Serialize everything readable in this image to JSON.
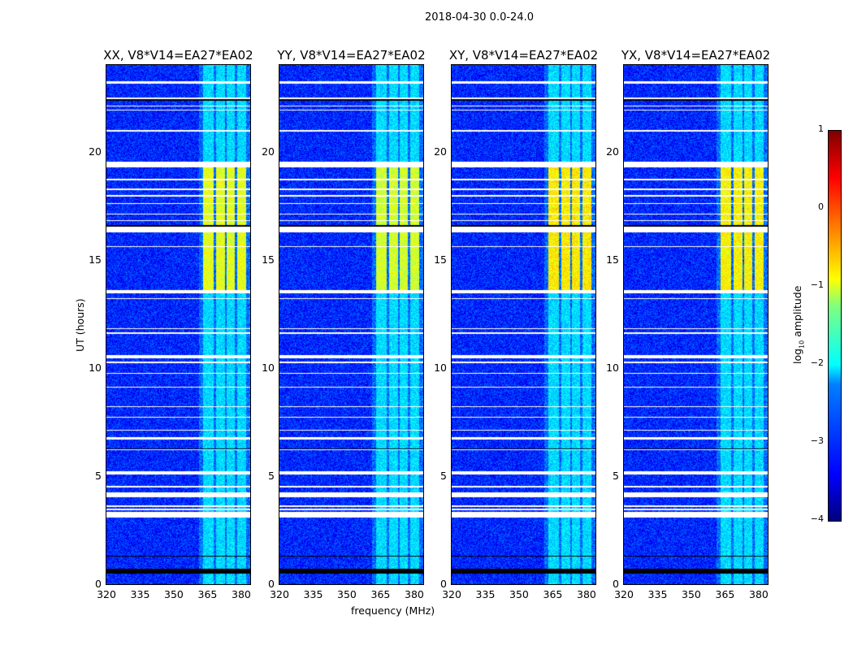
{
  "chart_data": {
    "type": "heatmap",
    "title": "2018-04-30 0.0-24.0",
    "xlabel": "frequency (MHz)",
    "ylabel": "UT (hours)",
    "xlim": [
      320,
      384
    ],
    "ylim": [
      0,
      24
    ],
    "xticks": [
      "320",
      "335",
      "350",
      "365",
      "380"
    ],
    "yticks": [
      "0",
      "5",
      "10",
      "15",
      "20"
    ],
    "panels": [
      {
        "title": "XX, V8*V14=EA27*EA02",
        "peak_boost": 1.0
      },
      {
        "title": "YY, V8*V14=EA27*EA02",
        "peak_boost": 1.1
      },
      {
        "title": "XY, V8*V14=EA27*EA02",
        "peak_boost": 0.8
      },
      {
        "title": "YX, V8*V14=EA27*EA02",
        "peak_boost": 0.85
      }
    ],
    "background_log10_amplitude": -3.2,
    "rfi_channels_mhz": [
      [
        363,
        367.5
      ],
      [
        368.5,
        372.5
      ],
      [
        373.5,
        377
      ],
      [
        378,
        382
      ]
    ],
    "rfi_log10_amplitude_quiet": -2.3,
    "rfi_log10_amplitude_active": -1.0,
    "rfi_active_hours": [
      13.5,
      19.3
    ],
    "flagged_hours_white": [
      [
        23.15,
        23.25
      ],
      [
        22.45,
        22.5
      ],
      [
        22.1,
        22.15
      ],
      [
        21.9,
        21.95
      ],
      [
        20.95,
        21.0
      ],
      [
        19.3,
        19.55
      ],
      [
        18.7,
        18.75
      ],
      [
        18.25,
        18.3
      ],
      [
        17.95,
        18.0
      ],
      [
        17.6,
        17.65
      ],
      [
        17.1,
        17.15
      ],
      [
        16.8,
        16.85
      ],
      [
        16.3,
        16.55
      ],
      [
        15.6,
        15.65
      ],
      [
        13.45,
        13.6
      ],
      [
        13.2,
        13.25
      ],
      [
        11.8,
        11.85
      ],
      [
        11.6,
        11.65
      ],
      [
        10.45,
        10.6
      ],
      [
        10.25,
        10.3
      ],
      [
        9.75,
        9.8
      ],
      [
        9.1,
        9.15
      ],
      [
        8.2,
        8.25
      ],
      [
        7.7,
        7.75
      ],
      [
        7.1,
        7.15
      ],
      [
        6.7,
        6.8
      ],
      [
        6.2,
        6.25
      ],
      [
        5.1,
        5.25
      ],
      [
        4.5,
        4.55
      ],
      [
        4.05,
        4.25
      ],
      [
        3.6,
        3.65
      ],
      [
        3.45,
        3.5
      ],
      [
        3.1,
        3.35
      ]
    ],
    "flagged_hours_black": [
      [
        22.38,
        22.45
      ],
      [
        16.55,
        16.62
      ],
      [
        6.25,
        6.3
      ],
      [
        1.3,
        1.35
      ],
      [
        0.5,
        0.75
      ]
    ],
    "colorbar": {
      "label": "log10 amplitude",
      "range": [
        -4,
        1
      ],
      "ticks": [
        "1",
        "0",
        "−1",
        "−2",
        "−3",
        "−4"
      ]
    }
  }
}
